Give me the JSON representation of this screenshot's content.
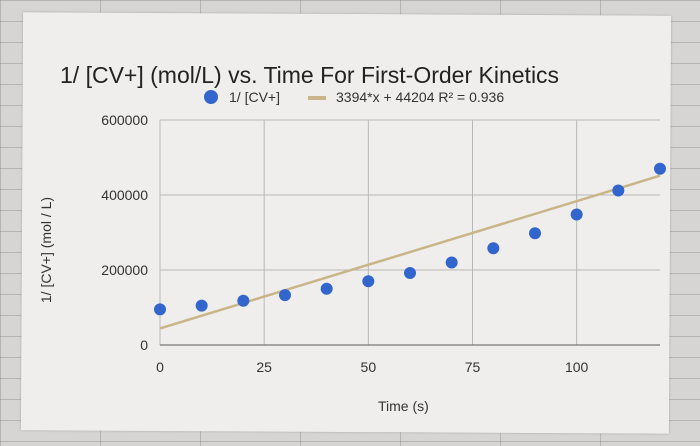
{
  "chart_data": {
    "type": "scatter",
    "title": "1/ [CV+] (mol/L) vs. Time For First-Order Kinetics",
    "xlabel": "Time (s)",
    "ylabel": "1/ [CV+] (mol / L)",
    "xlim": [
      0,
      120
    ],
    "ylim": [
      0,
      600000
    ],
    "x_ticks": [
      "0",
      "25",
      "50",
      "75",
      "100"
    ],
    "y_ticks": [
      "0",
      "200000",
      "400000",
      "600000"
    ],
    "grid": true,
    "legend_position": "top",
    "series": [
      {
        "name": "1/ [CV+]",
        "color": "#3366cc",
        "x": [
          0,
          10,
          20,
          30,
          40,
          50,
          60,
          70,
          80,
          90,
          100,
          110,
          120
        ],
        "y": [
          95000,
          105000,
          118000,
          133000,
          150000,
          170000,
          192000,
          220000,
          258000,
          298000,
          348000,
          412000,
          470000
        ]
      }
    ],
    "trendline": {
      "label": "3394*x + 44204 R² = 0.936",
      "color": "#c9b588",
      "slope": 3394,
      "intercept": 44204
    }
  }
}
